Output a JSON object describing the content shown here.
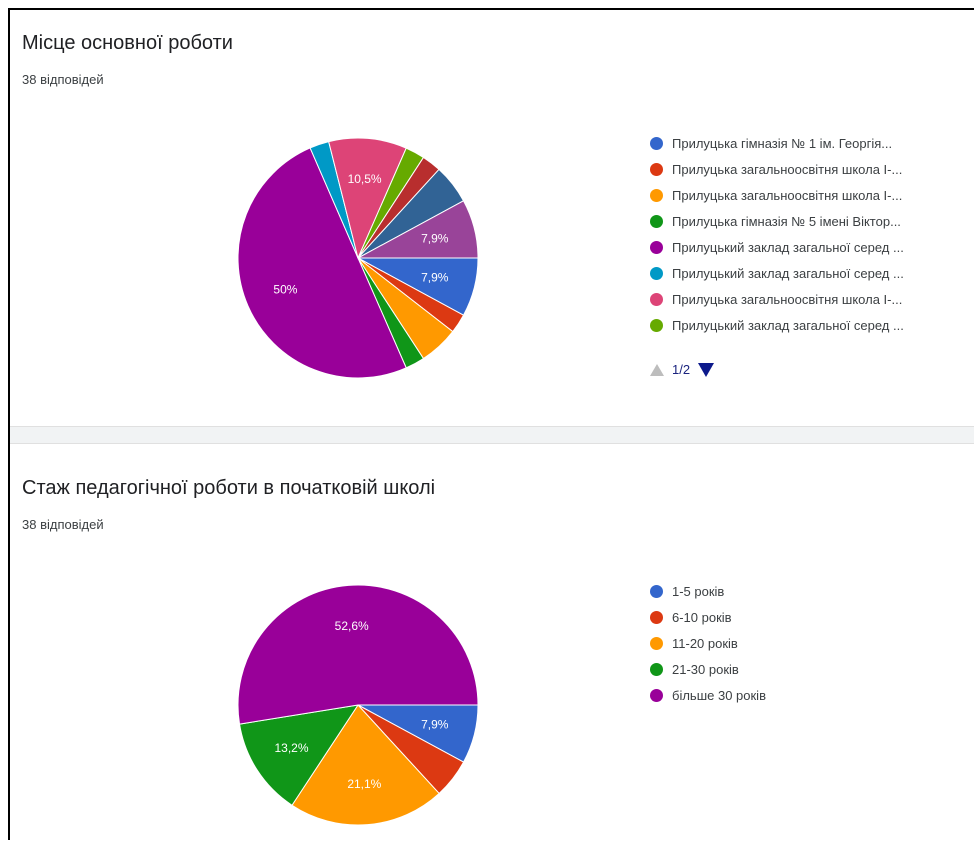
{
  "chart_data": [
    {
      "type": "pie",
      "title": "Місце основної роботи",
      "subtitle": "38 відповідей",
      "legend_position": "right",
      "legend_page": "1/2",
      "slices": [
        {
          "label": "Прилуцька гімназія № 1 ім. Георгія...",
          "value": 7.9,
          "color": "#3366cc",
          "show_label": true,
          "display": "7,9%"
        },
        {
          "label": "Прилуцька загальноосвітня школа І-...",
          "value": 2.6,
          "color": "#dc3912",
          "show_label": false,
          "display": ""
        },
        {
          "label": "Прилуцька загальноосвітня школа І-...",
          "value": 5.3,
          "color": "#ff9900",
          "show_label": false,
          "display": ""
        },
        {
          "label": "Прилуцька гімназія № 5 імені Віктор...",
          "value": 2.6,
          "color": "#109618",
          "show_label": false,
          "display": ""
        },
        {
          "label": "Прилуцький заклад загальної серед ...",
          "value": 50,
          "color": "#990099",
          "show_label": true,
          "display": "50%"
        },
        {
          "label": "Прилуцький заклад загальної серед ...",
          "value": 2.6,
          "color": "#0099c6",
          "show_label": false,
          "display": ""
        },
        {
          "label": "Прилуцька загальноосвітня школа І-...",
          "value": 10.5,
          "color": "#dd4477",
          "show_label": true,
          "display": "10,5%"
        },
        {
          "label": "Прилуцький заклад загальної серед ...",
          "value": 2.6,
          "color": "#66aa00",
          "show_label": false,
          "display": ""
        },
        {
          "label": "",
          "value": 2.6,
          "color": "#b82e2e",
          "show_label": false,
          "display": ""
        },
        {
          "label": "",
          "value": 5.3,
          "color": "#316395",
          "show_label": false,
          "display": ""
        },
        {
          "label": "",
          "value": 7.9,
          "color": "#994499",
          "show_label": true,
          "display": "7,9%"
        }
      ]
    },
    {
      "type": "pie",
      "title": "Стаж педагогічної роботи в початковій школі",
      "subtitle": "38 відповідей",
      "legend_position": "right",
      "slices": [
        {
          "label": "1-5 років",
          "value": 7.9,
          "color": "#3366cc",
          "show_label": true,
          "display": "7,9%"
        },
        {
          "label": "6-10 років",
          "value": 5.3,
          "color": "#dc3912",
          "show_label": false,
          "display": ""
        },
        {
          "label": "11-20 років",
          "value": 21.1,
          "color": "#ff9900",
          "show_label": true,
          "display": "21,1%"
        },
        {
          "label": "21-30 років",
          "value": 13.2,
          "color": "#109618",
          "show_label": true,
          "display": "13,2%"
        },
        {
          "label": "більше 30 років",
          "value": 52.6,
          "color": "#990099",
          "show_label": true,
          "display": "52,6%"
        }
      ]
    }
  ]
}
